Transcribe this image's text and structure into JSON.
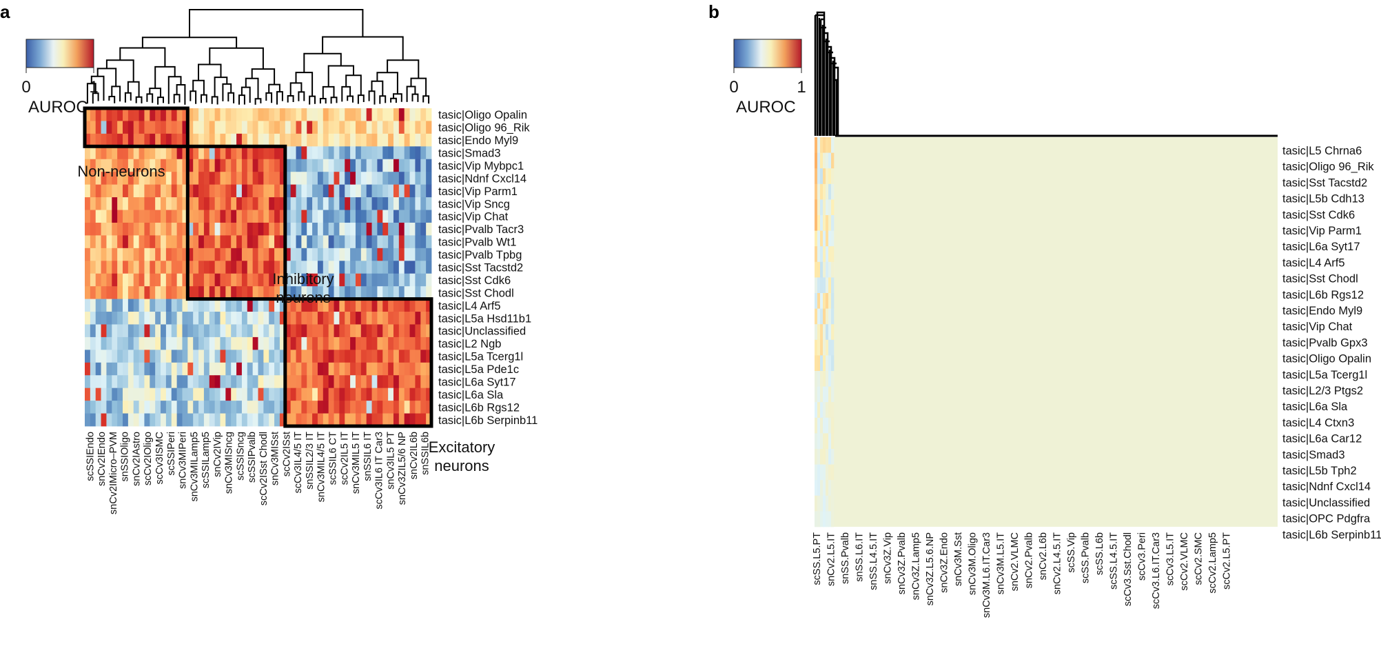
{
  "chart_data": [
    {
      "panel": "a",
      "type": "heatmap",
      "legend": {
        "title": "AUROC",
        "min_label": "0",
        "max_label": "1"
      },
      "row_labels": [
        "tasic|Oligo Opalin",
        "tasic|Oligo 96_Rik",
        "tasic|Endo Myl9",
        "tasic|Smad3",
        "tasic|Vip Mybpc1",
        "tasic|Ndnf Cxcl14",
        "tasic|Vip Parm1",
        "tasic|Vip Sncg",
        "tasic|Vip Chat",
        "tasic|Pvalb Tacr3",
        "tasic|Pvalb Wt1",
        "tasic|Pvalb Tpbg",
        "tasic|Sst Tacstd2",
        "tasic|Sst Cdk6",
        "tasic|Sst Chodl",
        "tasic|L4 Arf5",
        "tasic|L5a Hsd11b1",
        "tasic|Unclassified",
        "tasic|L2 Ngb",
        "tasic|L5a Tcerg1l",
        "tasic|L5a Pde1c",
        "tasic|L6a Syt17",
        "tasic|L6a Sla",
        "tasic|L6b Rgs12",
        "tasic|L6b Serpinb11"
      ],
      "col_labels": [
        "scSSIEndo",
        "snCv2IEndo",
        "snCv2IMicro–PVM",
        "snSSIOligo",
        "snCv2IAstro",
        "scCv2IOligo",
        "scCv3ISMC",
        "scSSIPeri",
        "snCv3MIPeri",
        "snCv3MILamp5",
        "scSSILamp5",
        "snCv2IVip",
        "snCv3MISncg",
        "scSSISncg",
        "scSSIPvalb",
        "scCv2ISst Chodl",
        "snCv3MISst",
        "scCv2ISst",
        "scCv3IL4/5 IT",
        "snSSIL2/3 IT",
        "snCv3MIL4/5 IT",
        "scSSIL6 CT",
        "scCv2IL5 IT",
        "snCv3MIL5 IT",
        "snSSIL6 IT",
        "scCv3IL6 IT Car3",
        "snCv3IL5 PT",
        "snCv3ZIL5/6 NP",
        "snCv2IL6b",
        "snSSIL6b"
      ],
      "annotations": [
        "Non-neurons",
        "Inhibitory neurons",
        "Excitatory neurons"
      ],
      "blocks": [
        {
          "name": "Non-neurons",
          "row_start": 0,
          "row_end": 2,
          "col_start": 0,
          "col_end": 9,
          "level": 0.9
        },
        {
          "name": "Inhibitory neurons",
          "row_start": 3,
          "row_end": 14,
          "col_start": 9,
          "col_end": 18,
          "level": 0.82
        },
        {
          "name": "Excitatory neurons",
          "row_start": 15,
          "row_end": 24,
          "col_start": 18,
          "col_end": 29,
          "level": 0.84
        }
      ],
      "value_range": [
        0,
        1
      ]
    },
    {
      "panel": "b",
      "type": "heatmap",
      "legend": {
        "title": "AUROC",
        "min_label": "0",
        "max_label": "1"
      },
      "row_labels": [
        "tasic|L5 Chrna6",
        "tasic|Oligo 96_Rik",
        "tasic|Sst Tacstd2",
        "tasic|L5b Cdh13",
        "tasic|Sst Cdk6",
        "tasic|Vip Parm1",
        "tasic|L6a Syt17",
        "tasic|L4 Arf5",
        "tasic|Sst Chodl",
        "tasic|L6b Rgs12",
        "tasic|Endo Myl9",
        "tasic|Vip Chat",
        "tasic|Pvalb Gpx3",
        "tasic|Oligo Opalin",
        "tasic|L5a Tcerg1l",
        "tasic|L2/3 Ptgs2",
        "tasic|L6a Sla",
        "tasic|L4 Ctxn3",
        "tasic|L6a Car12",
        "tasic|Smad3",
        "tasic|L5b Tph2",
        "tasic|Ndnf Cxcl14",
        "tasic|Unclassified",
        "tasic|OPC Pdgfra",
        "tasic|L6b Serpinb11"
      ],
      "col_labels": [
        "scSS.L5.PT",
        "snCv2.L5.IT",
        "snSS.Pvalb",
        "snSS.L6.IT",
        "snSS.L4.5.IT",
        "snCv3Z.Vip",
        "snCv3Z.Pvalb",
        "snCv3Z.Lamp5",
        "snCv3Z.L5.6.NP",
        "snCv3Z.Endo",
        "snCv3M.Sst",
        "snCv3M.Oligo",
        "snCv3M.L6.IT.Car3",
        "snCv3M.L5.IT",
        "snCv2.VLMC",
        "snCv2.Pvalb",
        "snCv2.L6b",
        "snCv2.L4.5.IT",
        "scSS.Vip",
        "scSS.Pvalb",
        "scSS.L6b",
        "scSS.L4.5.IT",
        "scCv3.Sst.Chodl",
        "scCv3.Peri",
        "scCv3.L6.IT.Car3",
        "scCv3.L5.IT",
        "scCv2.VLMC",
        "scCv2.SMC",
        "scCv2.Lamp5",
        "scCv2.L5.PT"
      ],
      "background_value": 0.5,
      "value_range": [
        0,
        1
      ]
    }
  ]
}
